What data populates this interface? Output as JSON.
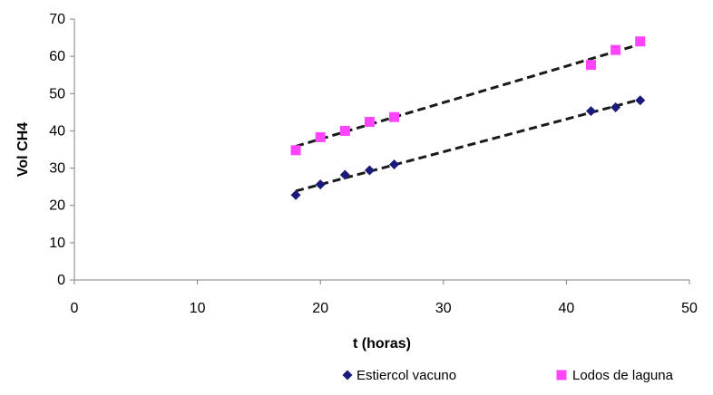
{
  "chart_data": {
    "type": "scatter",
    "title": "",
    "xlabel": "t (horas)",
    "ylabel": "Vol CH4",
    "xlim": [
      0,
      50
    ],
    "ylim": [
      0,
      70
    ],
    "xticks": [
      "0",
      "10",
      "20",
      "30",
      "40",
      "50"
    ],
    "yticks": [
      "0",
      "10",
      "20",
      "30",
      "40",
      "50",
      "60",
      "70"
    ],
    "grid": false,
    "legend_position": "bottom",
    "series": [
      {
        "name": "Estiercol vacuno",
        "marker": "diamond",
        "color": "#1a1a7a",
        "trendline": "linear",
        "x": [
          18,
          20,
          22,
          24,
          26,
          42,
          44,
          46
        ],
        "y": [
          22.8,
          25.6,
          28.2,
          29.4,
          31.0,
          45.3,
          46.3,
          48.2
        ]
      },
      {
        "name": "Lodos de laguna",
        "marker": "square",
        "color": "#ff44ff",
        "trendline": "linear",
        "x": [
          18,
          20,
          22,
          24,
          26,
          42,
          44,
          46
        ],
        "y": [
          34.8,
          38.3,
          40.0,
          42.4,
          43.7,
          57.7,
          61.7,
          64.0
        ]
      }
    ],
    "trendline_color": "#1a1a1a"
  }
}
